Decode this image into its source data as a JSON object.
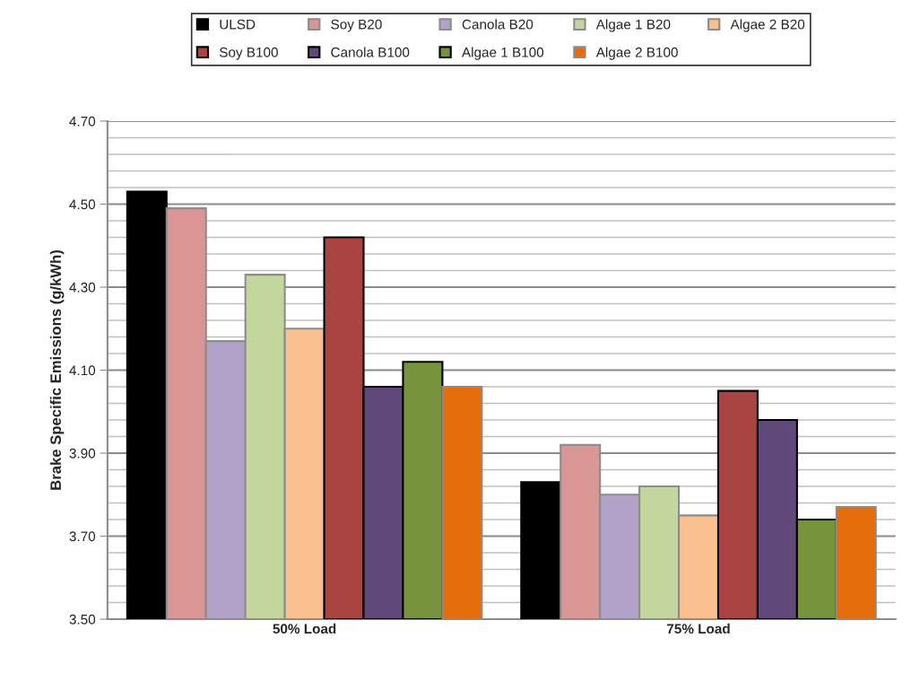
{
  "chart_data": {
    "type": "bar",
    "ylabel": "Brake Specific Emissions (g/kWh)",
    "categories": [
      "50% Load",
      "75% Load"
    ],
    "series": [
      {
        "name": "ULSD",
        "color": "#000000",
        "values": [
          4.53,
          3.83
        ]
      },
      {
        "name": "Soy B20",
        "color": "#d99694",
        "values": [
          4.49,
          3.92
        ]
      },
      {
        "name": "Canola B20",
        "color": "#b3a2c7",
        "values": [
          4.17,
          3.8
        ]
      },
      {
        "name": "Algae 1 B20",
        "color": "#c3d69b",
        "values": [
          4.33,
          3.82
        ]
      },
      {
        "name": "Algae 2 B20",
        "color": "#fac090",
        "values": [
          4.2,
          3.75
        ]
      },
      {
        "name": "Soy B100",
        "color": "#a94442",
        "values": [
          4.42,
          4.05
        ]
      },
      {
        "name": "Canola B100",
        "color": "#604a7b",
        "values": [
          4.06,
          3.98
        ]
      },
      {
        "name": "Algae 1 B100",
        "color": "#77933c",
        "values": [
          4.12,
          3.74
        ]
      },
      {
        "name": "Algae 2 B100",
        "color": "#e46c0a",
        "values": [
          4.06,
          3.77
        ]
      }
    ],
    "ylim": [
      3.5,
      4.7
    ],
    "yticks": [
      {
        "value": 3.5,
        "label": "3.50"
      },
      {
        "value": 3.7,
        "label": "3.70"
      },
      {
        "value": 3.9,
        "label": "3.90"
      },
      {
        "value": 4.1,
        "label": "4.10"
      },
      {
        "value": 4.3,
        "label": "4.30"
      },
      {
        "value": 4.5,
        "label": "4.50"
      },
      {
        "value": 4.7,
        "label": "4.70"
      }
    ],
    "grid": "y",
    "legend": "top"
  }
}
